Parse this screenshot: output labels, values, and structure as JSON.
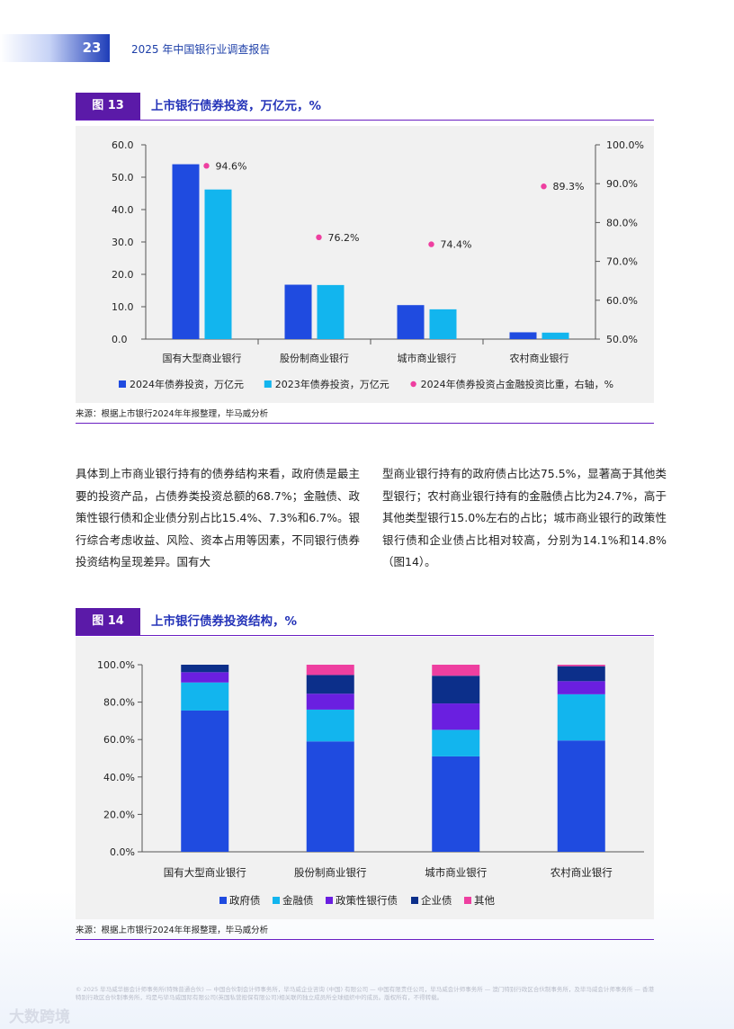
{
  "header": {
    "page_number": "23",
    "report_title": "2025 年中国银行业调查报告"
  },
  "figure13": {
    "tag": "图 13",
    "title": "上市银行债券投资，万亿元，%",
    "source": "来源：根据上市银行2024年年报整理，毕马威分析"
  },
  "figure14": {
    "tag": "图 14",
    "title": "上市银行债券投资结构，%",
    "source": "来源：根据上市银行2024年年报整理，毕马威分析"
  },
  "body": {
    "left": "具体到上市商业银行持有的债券结构来看，政府债是最主要的投资产品，占债券类投资总额的68.7%；金融债、政策性银行债和企业债分别占比15.4%、7.3%和6.7%。银行综合考虑收益、风险、资本占用等因素，不同银行债券投资结构呈现差异。国有大",
    "right": "型商业银行持有的政府债占比达75.5%，显著高于其他类型银行；农村商业银行持有的金融债占比为24.7%，高于其他类型银行15.0%左右的占比；城市商业银行的政策性银行债和企业债占比相对较高，分别为14.1%和14.8%（图14）。"
  },
  "footer": {
    "note": "© 2025 毕马威华振会计师事务所(特殊普通合伙) — 中国合伙制会计师事务所，毕马威企业咨询 (中国) 有限公司 — 中国有限责任公司，毕马威会计师事务所 — 澳门特别行政区合伙制事务所，及毕马威会计师事务所 — 香港特别行政区合伙制事务所，均是与毕马威国际有限公司(英国私营担保有限公司)相关联的独立成员所全球组织中的成员。版权所有，不得转载。",
    "watermark": "大数跨境"
  },
  "colors": {
    "navy_blue": "#1f4be0",
    "cyan": "#12b5ee",
    "pink": "#ee3fa0",
    "purple": "#6a1fe0",
    "dark_navy": "#0c2f8a"
  },
  "chart_data": [
    {
      "type": "bar",
      "title": "上市银行债券投资，万亿元，%",
      "categories": [
        "国有大型商业银行",
        "股份制商业银行",
        "城市商业银行",
        "农村商业银行"
      ],
      "series": [
        {
          "name": "2024年债券投资，万亿元",
          "type": "bar",
          "axis": "left",
          "color": "#1f4be0",
          "values": [
            54.0,
            16.8,
            10.5,
            2.1
          ]
        },
        {
          "name": "2023年债券投资，万亿元",
          "type": "bar",
          "axis": "left",
          "color": "#12b5ee",
          "values": [
            46.2,
            16.7,
            9.2,
            2.0
          ]
        },
        {
          "name": "2024年债券投资占金融投资比重，右轴，%",
          "type": "scatter",
          "axis": "right",
          "color": "#ee3fa0",
          "values": [
            94.6,
            76.2,
            74.4,
            89.3
          ],
          "labels": [
            "94.6%",
            "76.2%",
            "74.4%",
            "89.3%"
          ]
        }
      ],
      "ylim": [
        0,
        60
      ],
      "yticks": [
        "0.0",
        "10.0",
        "20.0",
        "30.0",
        "40.0",
        "50.0",
        "60.0"
      ],
      "y2lim": [
        50,
        100
      ],
      "y2ticks": [
        "50.0%",
        "60.0%",
        "70.0%",
        "80.0%",
        "90.0%",
        "100.0%"
      ],
      "legend": [
        "2024年债券投资，万亿元",
        "2023年债券投资，万亿元",
        "2024年债券投资占金融投资比重，右轴，%"
      ]
    },
    {
      "type": "stacked-bar",
      "title": "上市银行债券投资结构，%",
      "categories": [
        "国有大型商业银行",
        "股份制商业银行",
        "城市商业银行",
        "农村商业银行"
      ],
      "series": [
        {
          "name": "政府债",
          "color": "#1f4be0",
          "values": [
            75.5,
            59.0,
            51.0,
            59.5
          ]
        },
        {
          "name": "金融债",
          "color": "#12b5ee",
          "values": [
            15.0,
            17.0,
            14.2,
            24.7
          ]
        },
        {
          "name": "政策性银行债",
          "color": "#6a1fe0",
          "values": [
            5.5,
            8.5,
            14.1,
            7.0
          ]
        },
        {
          "name": "企业债",
          "color": "#0c2f8a",
          "values": [
            4.0,
            10.0,
            14.8,
            8.0
          ]
        },
        {
          "name": "其他",
          "color": "#ee3fa0",
          "values": [
            0.0,
            5.5,
            5.9,
            0.8
          ]
        }
      ],
      "ylim": [
        0,
        100
      ],
      "yticks": [
        "0.0%",
        "20.0%",
        "40.0%",
        "60.0%",
        "80.0%",
        "100.0%"
      ],
      "legend": [
        "政府债",
        "金融债",
        "政策性银行债",
        "企业债",
        "其他"
      ]
    }
  ]
}
